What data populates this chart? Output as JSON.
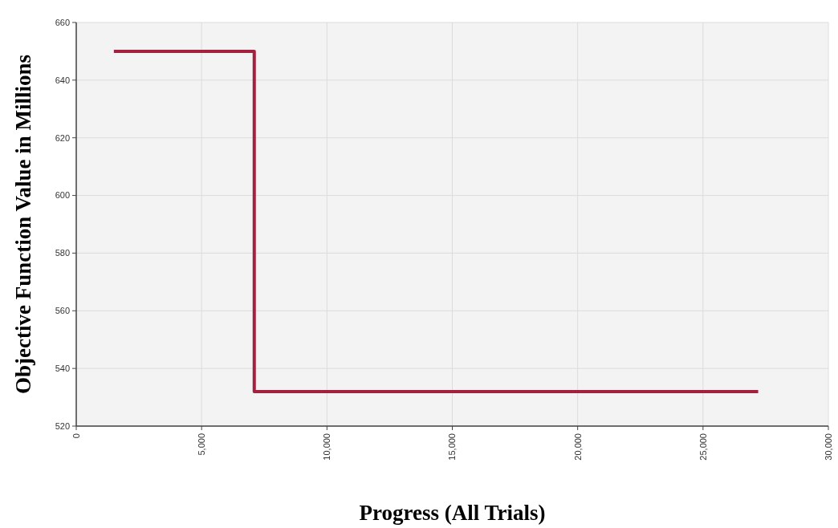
{
  "chart_data": {
    "type": "step",
    "xlabel": "Progress (All Trials)",
    "ylabel": "Objective Function Value in Millions",
    "x": [
      1500,
      7100,
      27200
    ],
    "series": [
      {
        "color": "#a3203f",
        "values": [
          650,
          532,
          532
        ]
      }
    ],
    "xlim": [
      0,
      30000
    ],
    "xticks": [
      {
        "value": 0,
        "label": "0"
      },
      {
        "value": 5000,
        "label": "5,000"
      },
      {
        "value": 10000,
        "label": "10,000"
      },
      {
        "value": 15000,
        "label": "15,000"
      },
      {
        "value": 20000,
        "label": "20,000"
      },
      {
        "value": 25000,
        "label": "25,000"
      },
      {
        "value": 30000,
        "label": "30,000"
      }
    ],
    "ylim": [
      520,
      660
    ],
    "yticks": [
      520,
      540,
      560,
      580,
      600,
      620,
      640,
      660
    ],
    "grid": true
  }
}
